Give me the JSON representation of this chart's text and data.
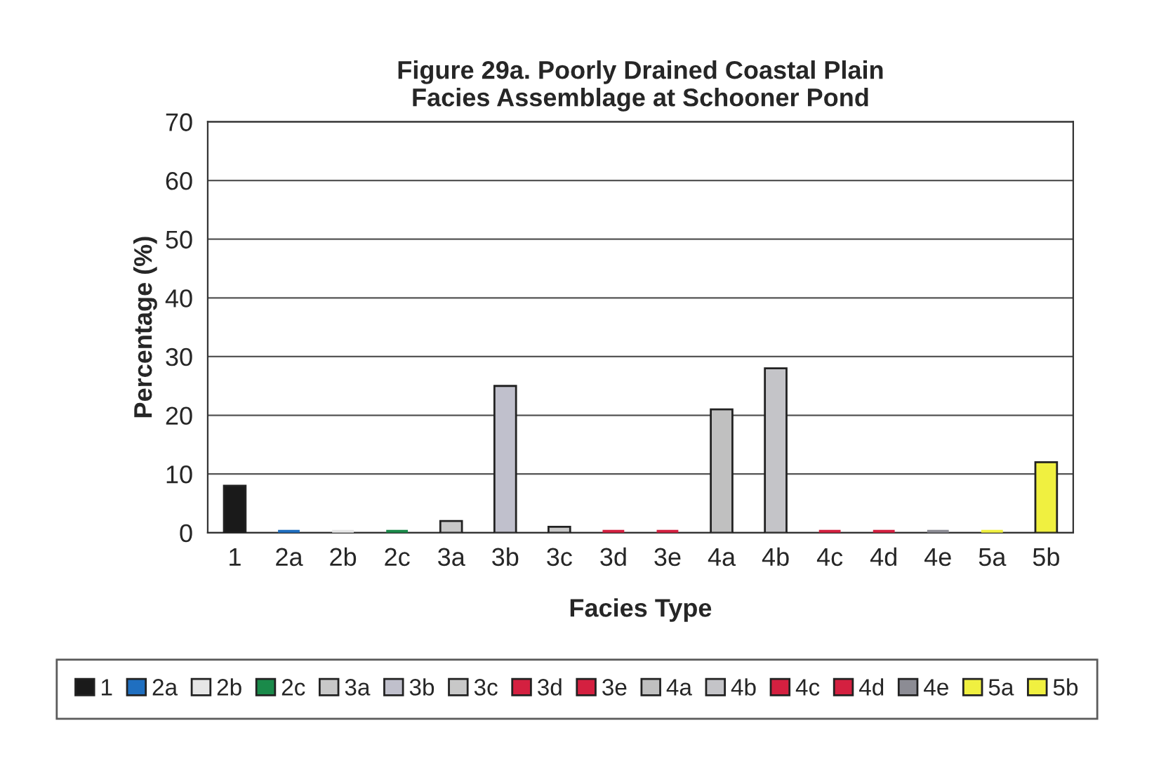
{
  "chart_data": {
    "type": "bar",
    "title": "Figure 29a. Poorly Drained Coastal Plain\nFacies Assemblage at Schooner Pond",
    "xlabel": "Facies Type",
    "ylabel": "Percentage (%)",
    "categories": [
      "1",
      "2a",
      "2b",
      "2c",
      "3a",
      "3b",
      "3c",
      "3d",
      "3e",
      "4a",
      "4b",
      "4c",
      "4d",
      "4e",
      "5a",
      "5b"
    ],
    "series": [
      {
        "name": "1",
        "color": "#1a1a1a",
        "values": [
          8,
          null,
          null,
          null,
          null,
          null,
          null,
          null,
          null,
          null,
          null,
          null,
          null,
          null,
          null,
          null
        ]
      },
      {
        "name": "2a",
        "color": "#1f6fc0",
        "values": [
          null,
          0,
          null,
          null,
          null,
          null,
          null,
          null,
          null,
          null,
          null,
          null,
          null,
          null,
          null,
          null
        ]
      },
      {
        "name": "2b",
        "color": "#e6e6e6",
        "values": [
          null,
          null,
          0,
          null,
          null,
          null,
          null,
          null,
          null,
          null,
          null,
          null,
          null,
          null,
          null,
          null
        ]
      },
      {
        "name": "2c",
        "color": "#1a8a4a",
        "values": [
          null,
          null,
          null,
          0,
          null,
          null,
          null,
          null,
          null,
          null,
          null,
          null,
          null,
          null,
          null,
          null
        ]
      },
      {
        "name": "3a",
        "color": "#c8c8c8",
        "values": [
          null,
          null,
          null,
          null,
          2,
          null,
          null,
          null,
          null,
          null,
          null,
          null,
          null,
          null,
          null,
          null
        ]
      },
      {
        "name": "3b",
        "color": "#c0c0cc",
        "values": [
          null,
          null,
          null,
          null,
          null,
          25,
          null,
          null,
          null,
          null,
          null,
          null,
          null,
          null,
          null,
          null
        ]
      },
      {
        "name": "3c",
        "color": "#c8c8c8",
        "values": [
          null,
          null,
          null,
          null,
          null,
          null,
          1,
          null,
          null,
          null,
          null,
          null,
          null,
          null,
          null,
          null
        ]
      },
      {
        "name": "3d",
        "color": "#d42040",
        "values": [
          null,
          null,
          null,
          null,
          null,
          null,
          null,
          0,
          null,
          null,
          null,
          null,
          null,
          null,
          null,
          null
        ]
      },
      {
        "name": "3e",
        "color": "#d42040",
        "values": [
          null,
          null,
          null,
          null,
          null,
          null,
          null,
          null,
          0,
          null,
          null,
          null,
          null,
          null,
          null,
          null
        ]
      },
      {
        "name": "4a",
        "color": "#c0c0c0",
        "values": [
          null,
          null,
          null,
          null,
          null,
          null,
          null,
          null,
          null,
          21,
          null,
          null,
          null,
          null,
          null,
          null
        ]
      },
      {
        "name": "4b",
        "color": "#c4c4c8",
        "values": [
          null,
          null,
          null,
          null,
          null,
          null,
          null,
          null,
          null,
          null,
          28,
          null,
          null,
          null,
          null,
          null
        ]
      },
      {
        "name": "4c",
        "color": "#d42040",
        "values": [
          null,
          null,
          null,
          null,
          null,
          null,
          null,
          null,
          null,
          null,
          null,
          0,
          null,
          null,
          null,
          null
        ]
      },
      {
        "name": "4d",
        "color": "#d42040",
        "values": [
          null,
          null,
          null,
          null,
          null,
          null,
          null,
          null,
          null,
          null,
          null,
          null,
          0,
          null,
          null,
          null
        ]
      },
      {
        "name": "4e",
        "color": "#8c8c94",
        "values": [
          null,
          null,
          null,
          null,
          null,
          null,
          null,
          null,
          null,
          null,
          null,
          null,
          null,
          0,
          null,
          null
        ]
      },
      {
        "name": "5a",
        "color": "#f0f040",
        "values": [
          null,
          null,
          null,
          null,
          null,
          null,
          null,
          null,
          null,
          null,
          null,
          null,
          null,
          null,
          0,
          null
        ]
      },
      {
        "name": "5b",
        "color": "#f0f040",
        "values": [
          null,
          null,
          null,
          null,
          null,
          null,
          null,
          null,
          null,
          null,
          null,
          null,
          null,
          null,
          null,
          12
        ]
      }
    ],
    "ylim": [
      0,
      70
    ],
    "yticks": [
      0,
      10,
      20,
      30,
      40,
      50,
      60,
      70
    ],
    "grid": "y",
    "legend": "bottom"
  }
}
